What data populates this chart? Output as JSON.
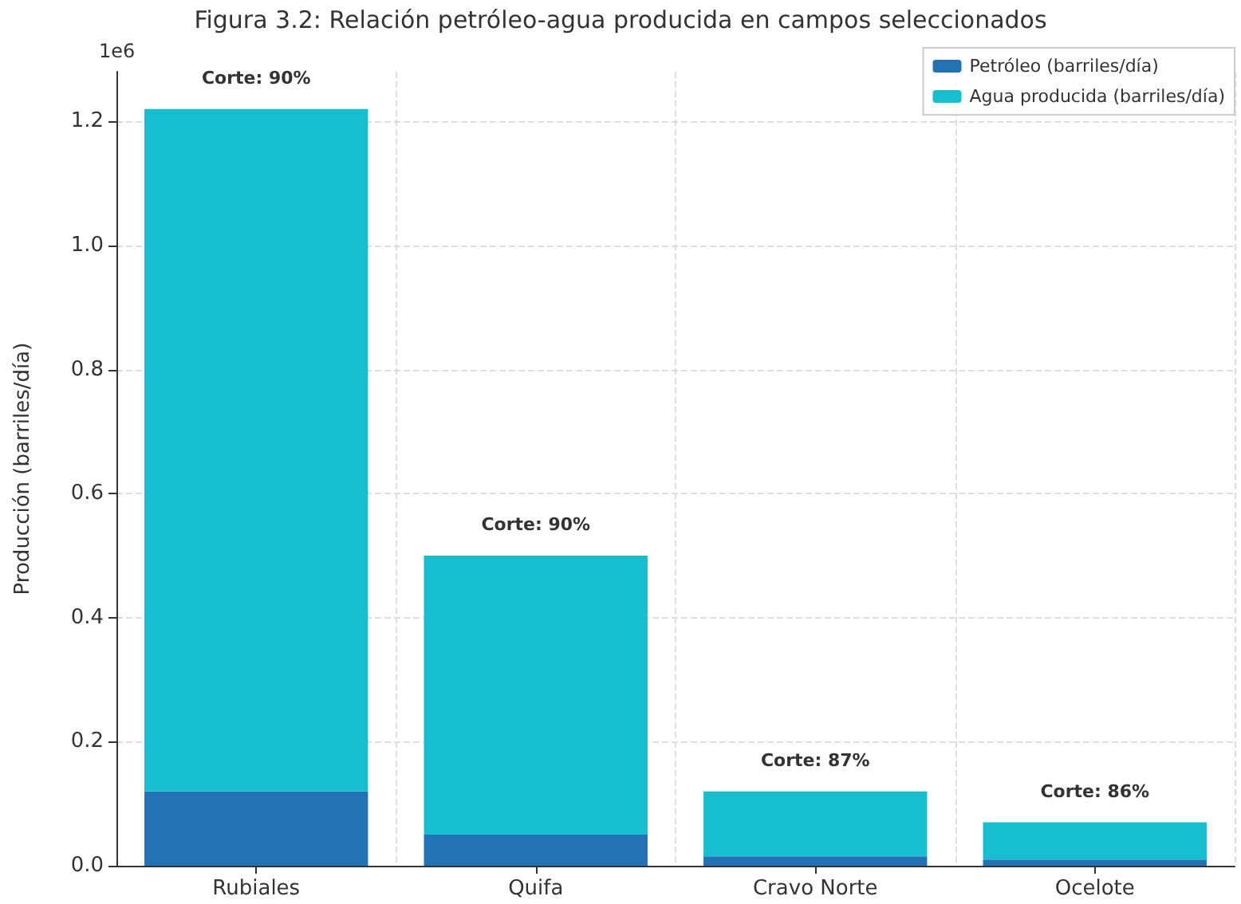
{
  "chart_data": {
    "type": "bar",
    "title": "Figura 3.2: Relación petróleo-agua producida en campos seleccionados",
    "ylabel": "Producción (barriles/día)",
    "categories": [
      "Rubiales",
      "Quifa",
      "Cravo Norte",
      "Ocelote"
    ],
    "series": [
      {
        "name": "Petróleo (barriles/día)",
        "color": "#2272b4",
        "values": [
          0.12,
          0.05,
          0.015,
          0.01
        ]
      },
      {
        "name": "Agua producida (barriles/día)",
        "color": "#17becf",
        "values": [
          1.1,
          0.45,
          0.105,
          0.06
        ]
      }
    ],
    "stacked": true,
    "ylim": [
      0,
      1.28
    ],
    "yticks": [
      {
        "value": 0,
        "label": "0.0"
      },
      0.2,
      0.4,
      0.6,
      0.8,
      {
        "value": 1,
        "label": "1.0"
      },
      1.2
    ],
    "annotations": [
      "1e6",
      {
        "text": "Corte: 90%",
        "x": "Rubiales",
        "y": 1.22
      },
      {
        "text": "Corte: 90%",
        "x": "Quifa",
        "y": 0.5
      },
      {
        "text": "Corte: 87%",
        "x": "Cravo Norte",
        "y": 0.12
      },
      {
        "text": "Corte: 86%",
        "x": "Ocelote",
        "y": 0.07
      }
    ],
    "grid": true,
    "legend": "top right"
  }
}
